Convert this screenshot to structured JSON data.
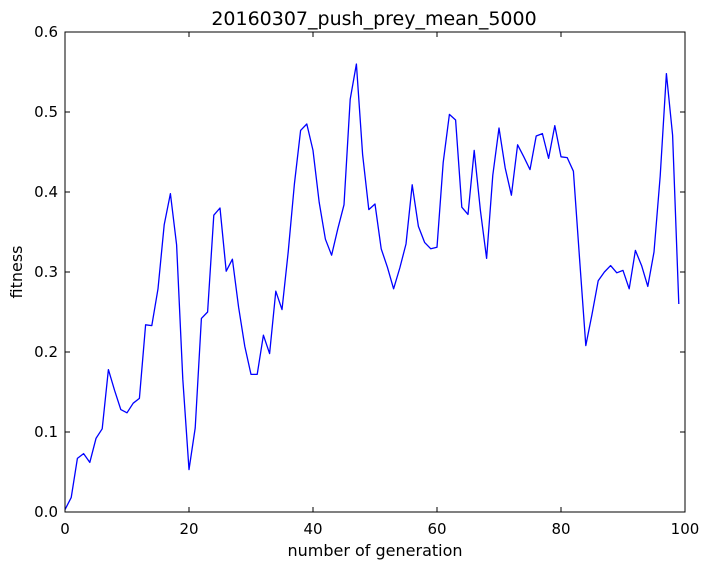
{
  "chart_data": {
    "type": "line",
    "title": "20160307_push_prey_mean_5000",
    "xlabel": "number of generation",
    "ylabel": "fitness",
    "xlim": [
      0,
      100
    ],
    "ylim": [
      0,
      0.6
    ],
    "xticks": [
      0,
      20,
      40,
      60,
      80,
      100
    ],
    "xtick_labels": [
      "0",
      "20",
      "40",
      "60",
      "80",
      "100"
    ],
    "yticks": [
      0,
      0.1,
      0.2,
      0.3,
      0.4,
      0.5,
      0.6
    ],
    "ytick_labels": [
      "0.0",
      "0.1",
      "0.2",
      "0.3",
      "0.4",
      "0.5",
      "0.6"
    ],
    "grid": false,
    "series": [
      {
        "color": "#0000ff",
        "x": [
          0,
          1,
          2,
          3,
          4,
          5,
          6,
          7,
          8,
          9,
          10,
          11,
          12,
          13,
          14,
          15,
          16,
          17,
          18,
          19,
          20,
          21,
          22,
          23,
          24,
          25,
          26,
          27,
          28,
          29,
          30,
          31,
          32,
          33,
          34,
          35,
          36,
          37,
          38,
          39,
          40,
          41,
          42,
          43,
          44,
          45,
          46,
          47,
          48,
          49,
          50,
          51,
          52,
          53,
          54,
          55,
          56,
          57,
          58,
          59,
          60,
          61,
          62,
          63,
          64,
          65,
          66,
          67,
          68,
          69,
          70,
          71,
          72,
          73,
          74,
          75,
          76,
          77,
          78,
          79,
          80,
          81,
          82,
          83,
          84,
          85,
          86,
          87,
          88,
          89,
          90,
          91,
          92,
          93,
          94,
          95,
          96,
          97,
          98,
          99
        ],
        "y": [
          0.003,
          0.018,
          0.067,
          0.073,
          0.062,
          0.092,
          0.104,
          0.178,
          0.152,
          0.128,
          0.124,
          0.136,
          0.142,
          0.234,
          0.233,
          0.279,
          0.359,
          0.398,
          0.334,
          0.166,
          0.053,
          0.105,
          0.242,
          0.25,
          0.371,
          0.38,
          0.301,
          0.316,
          0.256,
          0.207,
          0.172,
          0.172,
          0.221,
          0.198,
          0.276,
          0.253,
          0.325,
          0.41,
          0.477,
          0.485,
          0.452,
          0.387,
          0.341,
          0.321,
          0.354,
          0.384,
          0.516,
          0.56,
          0.447,
          0.378,
          0.385,
          0.329,
          0.306,
          0.279,
          0.305,
          0.335,
          0.409,
          0.357,
          0.337,
          0.329,
          0.331,
          0.437,
          0.497,
          0.49,
          0.381,
          0.372,
          0.452,
          0.377,
          0.317,
          0.421,
          0.48,
          0.43,
          0.396,
          0.459,
          0.444,
          0.428,
          0.47,
          0.473,
          0.442,
          0.483,
          0.444,
          0.443,
          0.426,
          0.316,
          0.208,
          0.247,
          0.289,
          0.3,
          0.308,
          0.299,
          0.302,
          0.279,
          0.327,
          0.308,
          0.282,
          0.325,
          0.42,
          0.548,
          0.471,
          0.26
        ]
      }
    ]
  }
}
